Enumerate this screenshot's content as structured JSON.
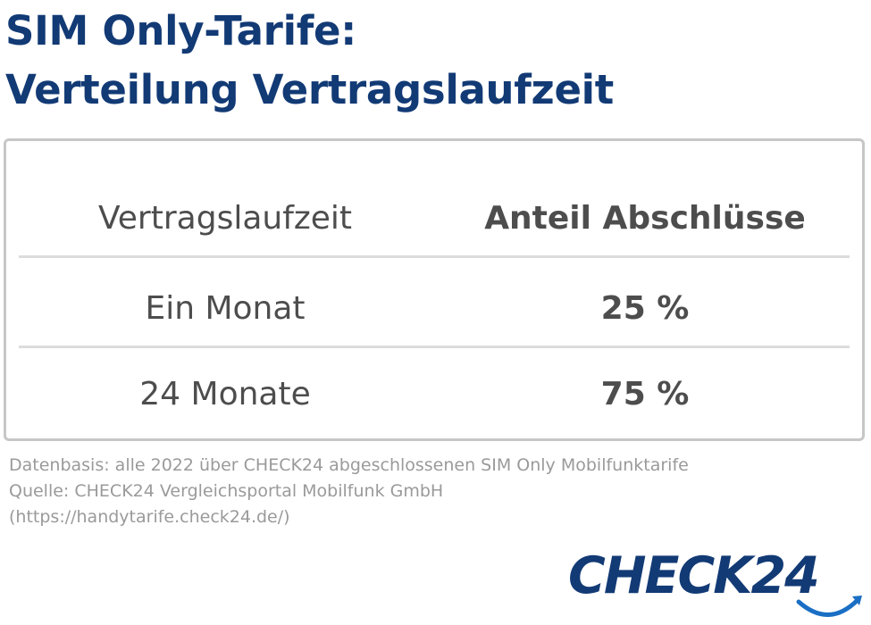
{
  "title": {
    "line1": "SIM Only-Tarife:",
    "line2": "Verteilung Vertragslaufzeit"
  },
  "chart_data": {
    "type": "table",
    "columns": [
      "Vertragslaufzeit",
      "Anteil Abschlüsse"
    ],
    "rows": [
      {
        "label": "Ein Monat",
        "value_text": "25 %",
        "value": 25
      },
      {
        "label": "24 Monate",
        "value_text": "75 %",
        "value": 75
      }
    ]
  },
  "footnote": {
    "line1": "Datenbasis: alle 2022 über CHECK24 abgeschlossenen SIM Only Mobilfunktarife",
    "line2": "Quelle: CHECK24 Vergleichsportal Mobilfunk GmbH",
    "line3": "(https://handytarife.check24.de/)"
  },
  "logo": {
    "text": "CHECK24"
  },
  "colors": {
    "title": "#123a75",
    "table_text": "#4d4d4d",
    "border": "#c7c7c7",
    "footnote": "#9a9a9a",
    "logo": "#123a75",
    "swoosh": "#1a6fc4"
  }
}
